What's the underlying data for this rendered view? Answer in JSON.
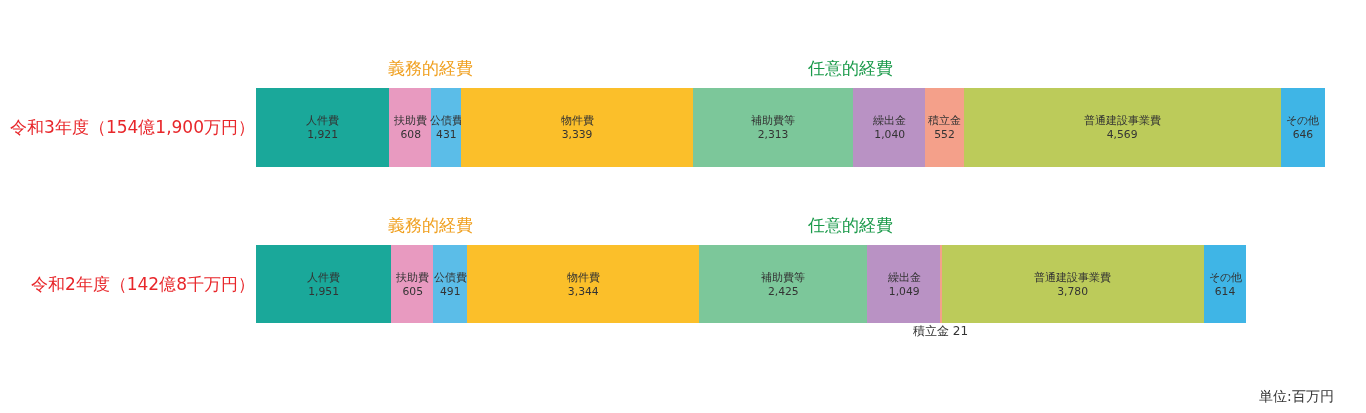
{
  "chart_data": {
    "type": "bar",
    "orientation": "horizontal",
    "stacked": true,
    "legend": false,
    "tick_labels": "y",
    "categories": [
      "令和3年度（154億1,900万円）",
      "令和2年度（142億8千万円）"
    ],
    "series": [
      {
        "name": "人件費",
        "color": "#1aa89a",
        "values": [
          1921,
          1951
        ],
        "value_labels": [
          "1,921",
          "1,951"
        ]
      },
      {
        "name": "扶助費",
        "color": "#e89ac0",
        "values": [
          608,
          605
        ],
        "value_labels": [
          "608",
          "605"
        ]
      },
      {
        "name": "公債費",
        "color": "#5bbde8",
        "values": [
          431,
          491
        ],
        "value_labels": [
          "431",
          "491"
        ]
      },
      {
        "name": "物件費",
        "color": "#fbbf2a",
        "values": [
          3339,
          3344
        ],
        "value_labels": [
          "3,339",
          "3,344"
        ]
      },
      {
        "name": "補助費等",
        "color": "#7cc79a",
        "values": [
          2313,
          2425
        ],
        "value_labels": [
          "2,313",
          "2,425"
        ]
      },
      {
        "name": "繰出金",
        "color": "#b992c4",
        "values": [
          1040,
          1049
        ],
        "value_labels": [
          "1,040",
          "1,049"
        ]
      },
      {
        "name": "積立金",
        "color": "#f4a08a",
        "values": [
          552,
          21
        ],
        "value_labels": [
          "552",
          "21"
        ]
      },
      {
        "name": "普通建設事業費",
        "color": "#bccb5a",
        "values": [
          4569,
          3780
        ],
        "value_labels": [
          "4,569",
          "3,780"
        ]
      },
      {
        "name": "その他",
        "color": "#3fb5e6",
        "values": [
          646,
          614
        ],
        "value_labels": [
          "646",
          "614"
        ]
      }
    ],
    "annotations": [
      "義務的経費",
      "任意的経費",
      "義務的経費",
      "任意的経費",
      "単位:百万円"
    ]
  }
}
